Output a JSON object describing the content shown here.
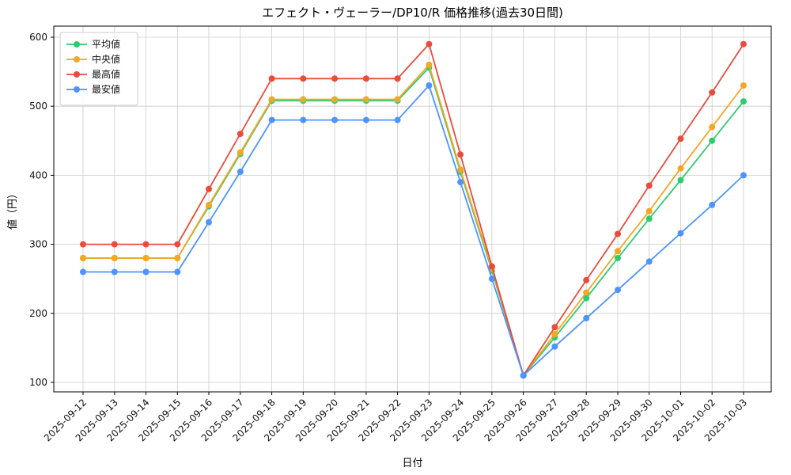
{
  "chart_data": {
    "type": "line",
    "title": "エフェクト・ヴェーラー/DP10/R 価格推移(過去30日間)",
    "xlabel": "日付",
    "ylabel": "値（円）",
    "ylim": [
      100,
      600
    ],
    "yticks": [
      100,
      200,
      300,
      400,
      500,
      600
    ],
    "grid": true,
    "legend_position": "upper left",
    "categories": [
      "2025-09-12",
      "2025-09-13",
      "2025-09-14",
      "2025-09-15",
      "2025-09-16",
      "2025-09-17",
      "2025-09-18",
      "2025-09-19",
      "2025-09-20",
      "2025-09-21",
      "2025-09-22",
      "2025-09-23",
      "2025-09-24",
      "2025-09-25",
      "2025-09-26",
      "2025-09-27",
      "2025-09-28",
      "2025-09-29",
      "2025-09-30",
      "2025-10-01",
      "2025-10-02",
      "2025-10-03"
    ],
    "series": [
      {
        "id": "average",
        "name": "平均値",
        "color": "#2ecc71",
        "values": [
          280,
          280,
          280,
          280,
          355,
          431,
          508,
          508,
          508,
          508,
          508,
          556,
          405,
          262,
          110,
          165,
          222,
          280,
          337,
          393,
          450,
          507
        ]
      },
      {
        "id": "median",
        "name": "中央値",
        "color": "#f5a623",
        "values": [
          280,
          280,
          280,
          280,
          357,
          433,
          510,
          510,
          510,
          510,
          510,
          560,
          408,
          265,
          110,
          170,
          230,
          290,
          348,
          410,
          470,
          530
        ]
      },
      {
        "id": "max",
        "name": "最高値",
        "color": "#e74c3c",
        "values": [
          300,
          300,
          300,
          300,
          380,
          460,
          540,
          540,
          540,
          540,
          540,
          590,
          430,
          268,
          110,
          180,
          248,
          315,
          385,
          453,
          520,
          590
        ]
      },
      {
        "id": "min",
        "name": "最安値",
        "color": "#4d94ff",
        "values": [
          260,
          260,
          260,
          260,
          332,
          405,
          480,
          480,
          480,
          480,
          480,
          530,
          390,
          250,
          110,
          152,
          193,
          234,
          275,
          316,
          357,
          400
        ]
      }
    ]
  }
}
